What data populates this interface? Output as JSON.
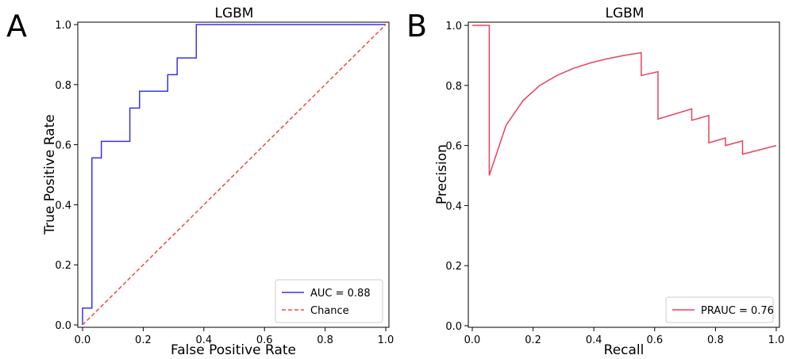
{
  "colors": {
    "roc_line": "#3535e6",
    "chance_line": "#f04a3c",
    "pr_line": "#e8435f",
    "axes": "#000000",
    "legend_border": "#cccccc"
  },
  "chart_data": [
    {
      "type": "line",
      "panel_label": "A",
      "title": "LGBM",
      "xlabel": "False Positive Rate",
      "ylabel": "True Positive Rate",
      "xlim": [
        0.0,
        1.0
      ],
      "ylim": [
        0.0,
        1.0
      ],
      "xticks": [
        "0.0",
        "0.2",
        "0.4",
        "0.6",
        "0.8",
        "1.0"
      ],
      "yticks": [
        "0.0",
        "0.2",
        "0.4",
        "0.6",
        "0.8",
        "1.0"
      ],
      "grid": false,
      "legend_position": "lower-right",
      "series": [
        {
          "name": "AUC = 0.88",
          "style": "solid",
          "color": "#3535e6",
          "x": [
            0.0,
            0.0,
            0.031,
            0.031,
            0.062,
            0.062,
            0.156,
            0.156,
            0.188,
            0.188,
            0.281,
            0.281,
            0.312,
            0.312,
            0.375,
            0.375,
            1.0
          ],
          "y": [
            0.0,
            0.056,
            0.056,
            0.556,
            0.556,
            0.611,
            0.611,
            0.722,
            0.722,
            0.778,
            0.778,
            0.833,
            0.833,
            0.889,
            0.889,
            1.0,
            1.0
          ]
        },
        {
          "name": "Chance",
          "style": "dashed",
          "color": "#f04a3c",
          "x": [
            0.0,
            1.0
          ],
          "y": [
            0.0,
            1.0
          ]
        }
      ]
    },
    {
      "type": "line",
      "panel_label": "B",
      "title": "LGBM",
      "xlabel": "Recall",
      "ylabel": "Precision",
      "xlim": [
        0.0,
        1.0
      ],
      "ylim": [
        0.0,
        1.0
      ],
      "xticks": [
        "0.0",
        "0.2",
        "0.4",
        "0.6",
        "0.8",
        "1.0"
      ],
      "yticks": [
        "0.0",
        "0.2",
        "0.4",
        "0.6",
        "0.8",
        "1.0"
      ],
      "grid": false,
      "legend_position": "lower-right",
      "series": [
        {
          "name": "PRAUC = 0.76",
          "style": "solid",
          "color": "#e8435f",
          "x": [
            0.0,
            0.056,
            0.056,
            0.111,
            0.167,
            0.222,
            0.278,
            0.333,
            0.389,
            0.444,
            0.5,
            0.556,
            0.556,
            0.611,
            0.611,
            0.722,
            0.722,
            0.778,
            0.778,
            0.833,
            0.833,
            0.889,
            0.889,
            1.0
          ],
          "y": [
            1.0,
            1.0,
            0.5,
            0.667,
            0.75,
            0.8,
            0.833,
            0.857,
            0.875,
            0.889,
            0.9,
            0.909,
            0.833,
            0.846,
            0.688,
            0.722,
            0.684,
            0.7,
            0.609,
            0.625,
            0.6,
            0.615,
            0.571,
            0.6
          ]
        }
      ]
    }
  ]
}
